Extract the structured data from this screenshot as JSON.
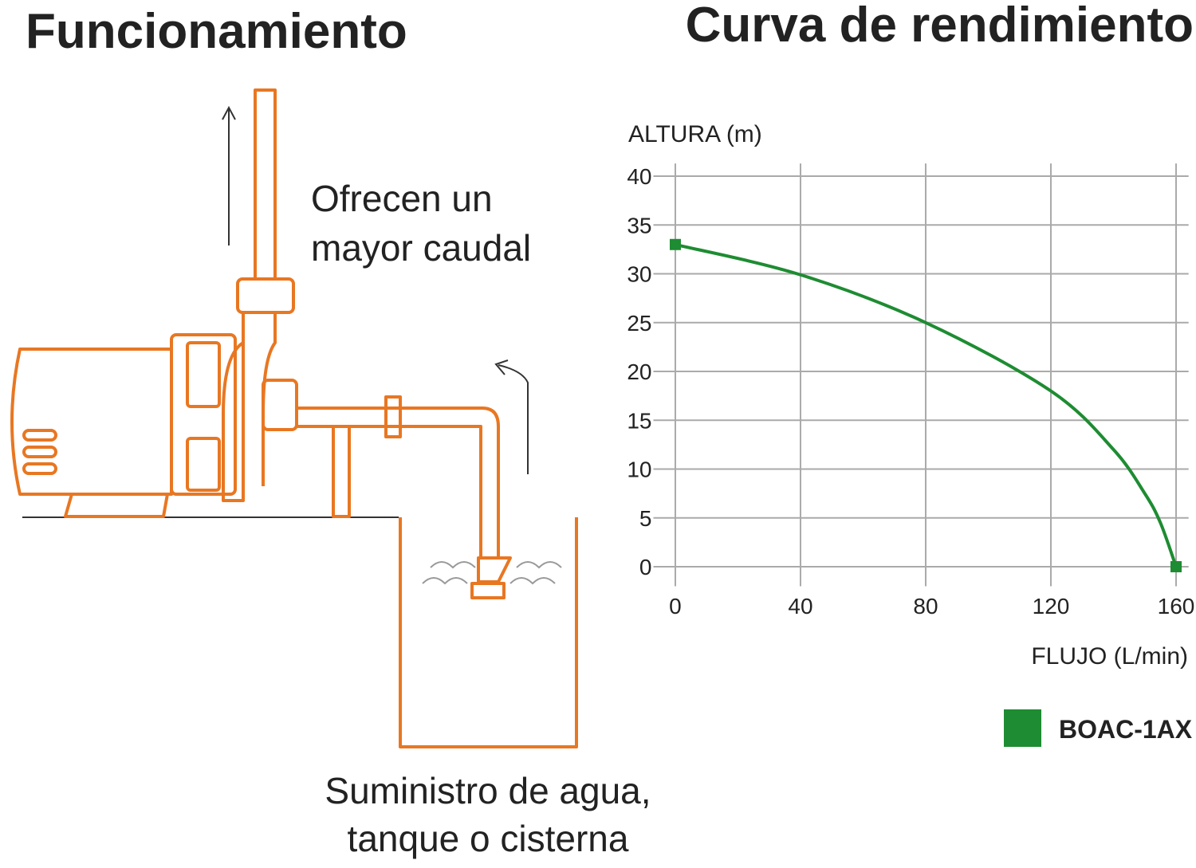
{
  "diagram": {
    "title": "Funcionamiento",
    "outlet_note": [
      "Ofrecen un",
      "mayor caudal"
    ],
    "supply_note": [
      "Suministro de agua,",
      "tanque o cisterna"
    ]
  },
  "chart_data": {
    "type": "line",
    "title": "Curva de rendimiento",
    "y_label": "ALTURA (m)",
    "x_label": "FLUJO (L/min)",
    "x": [
      0,
      40,
      80,
      120,
      140,
      150,
      155,
      160
    ],
    "series": [
      {
        "name": "BOAC-1AX",
        "color": "#1e8c32",
        "values": [
          33,
          29.9,
          25,
          18,
          12,
          7.5,
          4.5,
          0
        ]
      }
    ],
    "xlim": [
      -7,
      164
    ],
    "ylim": [
      -2,
      41.3
    ],
    "xticks": [
      0,
      40,
      80,
      120,
      160
    ],
    "yticks": [
      0,
      5,
      10,
      15,
      20,
      25,
      30,
      35,
      40
    ],
    "grid": true
  }
}
